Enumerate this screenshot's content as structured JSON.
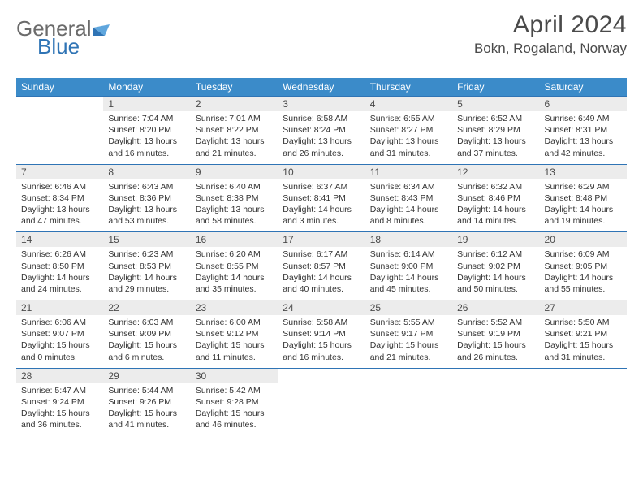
{
  "logo": {
    "text1": "General",
    "text2": "Blue",
    "text_color": "#6b6b6b",
    "accent_color": "#2f74b5"
  },
  "title": {
    "month": "April 2024",
    "location": "Bokn, Rogaland, Norway",
    "color": "#4a4a4a"
  },
  "calendar": {
    "header_bg": "#3b8bc9",
    "header_fg": "#ffffff",
    "daynum_bg": "#ececec",
    "row_border": "#2f74b5",
    "weekdays": [
      "Sunday",
      "Monday",
      "Tuesday",
      "Wednesday",
      "Thursday",
      "Friday",
      "Saturday"
    ],
    "weeks": [
      [
        null,
        {
          "n": "1",
          "sunrise": "7:04 AM",
          "sunset": "8:20 PM",
          "daylight": "13 hours and 16 minutes."
        },
        {
          "n": "2",
          "sunrise": "7:01 AM",
          "sunset": "8:22 PM",
          "daylight": "13 hours and 21 minutes."
        },
        {
          "n": "3",
          "sunrise": "6:58 AM",
          "sunset": "8:24 PM",
          "daylight": "13 hours and 26 minutes."
        },
        {
          "n": "4",
          "sunrise": "6:55 AM",
          "sunset": "8:27 PM",
          "daylight": "13 hours and 31 minutes."
        },
        {
          "n": "5",
          "sunrise": "6:52 AM",
          "sunset": "8:29 PM",
          "daylight": "13 hours and 37 minutes."
        },
        {
          "n": "6",
          "sunrise": "6:49 AM",
          "sunset": "8:31 PM",
          "daylight": "13 hours and 42 minutes."
        }
      ],
      [
        {
          "n": "7",
          "sunrise": "6:46 AM",
          "sunset": "8:34 PM",
          "daylight": "13 hours and 47 minutes."
        },
        {
          "n": "8",
          "sunrise": "6:43 AM",
          "sunset": "8:36 PM",
          "daylight": "13 hours and 53 minutes."
        },
        {
          "n": "9",
          "sunrise": "6:40 AM",
          "sunset": "8:38 PM",
          "daylight": "13 hours and 58 minutes."
        },
        {
          "n": "10",
          "sunrise": "6:37 AM",
          "sunset": "8:41 PM",
          "daylight": "14 hours and 3 minutes."
        },
        {
          "n": "11",
          "sunrise": "6:34 AM",
          "sunset": "8:43 PM",
          "daylight": "14 hours and 8 minutes."
        },
        {
          "n": "12",
          "sunrise": "6:32 AM",
          "sunset": "8:46 PM",
          "daylight": "14 hours and 14 minutes."
        },
        {
          "n": "13",
          "sunrise": "6:29 AM",
          "sunset": "8:48 PM",
          "daylight": "14 hours and 19 minutes."
        }
      ],
      [
        {
          "n": "14",
          "sunrise": "6:26 AM",
          "sunset": "8:50 PM",
          "daylight": "14 hours and 24 minutes."
        },
        {
          "n": "15",
          "sunrise": "6:23 AM",
          "sunset": "8:53 PM",
          "daylight": "14 hours and 29 minutes."
        },
        {
          "n": "16",
          "sunrise": "6:20 AM",
          "sunset": "8:55 PM",
          "daylight": "14 hours and 35 minutes."
        },
        {
          "n": "17",
          "sunrise": "6:17 AM",
          "sunset": "8:57 PM",
          "daylight": "14 hours and 40 minutes."
        },
        {
          "n": "18",
          "sunrise": "6:14 AM",
          "sunset": "9:00 PM",
          "daylight": "14 hours and 45 minutes."
        },
        {
          "n": "19",
          "sunrise": "6:12 AM",
          "sunset": "9:02 PM",
          "daylight": "14 hours and 50 minutes."
        },
        {
          "n": "20",
          "sunrise": "6:09 AM",
          "sunset": "9:05 PM",
          "daylight": "14 hours and 55 minutes."
        }
      ],
      [
        {
          "n": "21",
          "sunrise": "6:06 AM",
          "sunset": "9:07 PM",
          "daylight": "15 hours and 0 minutes."
        },
        {
          "n": "22",
          "sunrise": "6:03 AM",
          "sunset": "9:09 PM",
          "daylight": "15 hours and 6 minutes."
        },
        {
          "n": "23",
          "sunrise": "6:00 AM",
          "sunset": "9:12 PM",
          "daylight": "15 hours and 11 minutes."
        },
        {
          "n": "24",
          "sunrise": "5:58 AM",
          "sunset": "9:14 PM",
          "daylight": "15 hours and 16 minutes."
        },
        {
          "n": "25",
          "sunrise": "5:55 AM",
          "sunset": "9:17 PM",
          "daylight": "15 hours and 21 minutes."
        },
        {
          "n": "26",
          "sunrise": "5:52 AM",
          "sunset": "9:19 PM",
          "daylight": "15 hours and 26 minutes."
        },
        {
          "n": "27",
          "sunrise": "5:50 AM",
          "sunset": "9:21 PM",
          "daylight": "15 hours and 31 minutes."
        }
      ],
      [
        {
          "n": "28",
          "sunrise": "5:47 AM",
          "sunset": "9:24 PM",
          "daylight": "15 hours and 36 minutes."
        },
        {
          "n": "29",
          "sunrise": "5:44 AM",
          "sunset": "9:26 PM",
          "daylight": "15 hours and 41 minutes."
        },
        {
          "n": "30",
          "sunrise": "5:42 AM",
          "sunset": "9:28 PM",
          "daylight": "15 hours and 46 minutes."
        },
        null,
        null,
        null,
        null
      ]
    ]
  },
  "labels": {
    "sunrise": "Sunrise:",
    "sunset": "Sunset:",
    "daylight": "Daylight:"
  }
}
